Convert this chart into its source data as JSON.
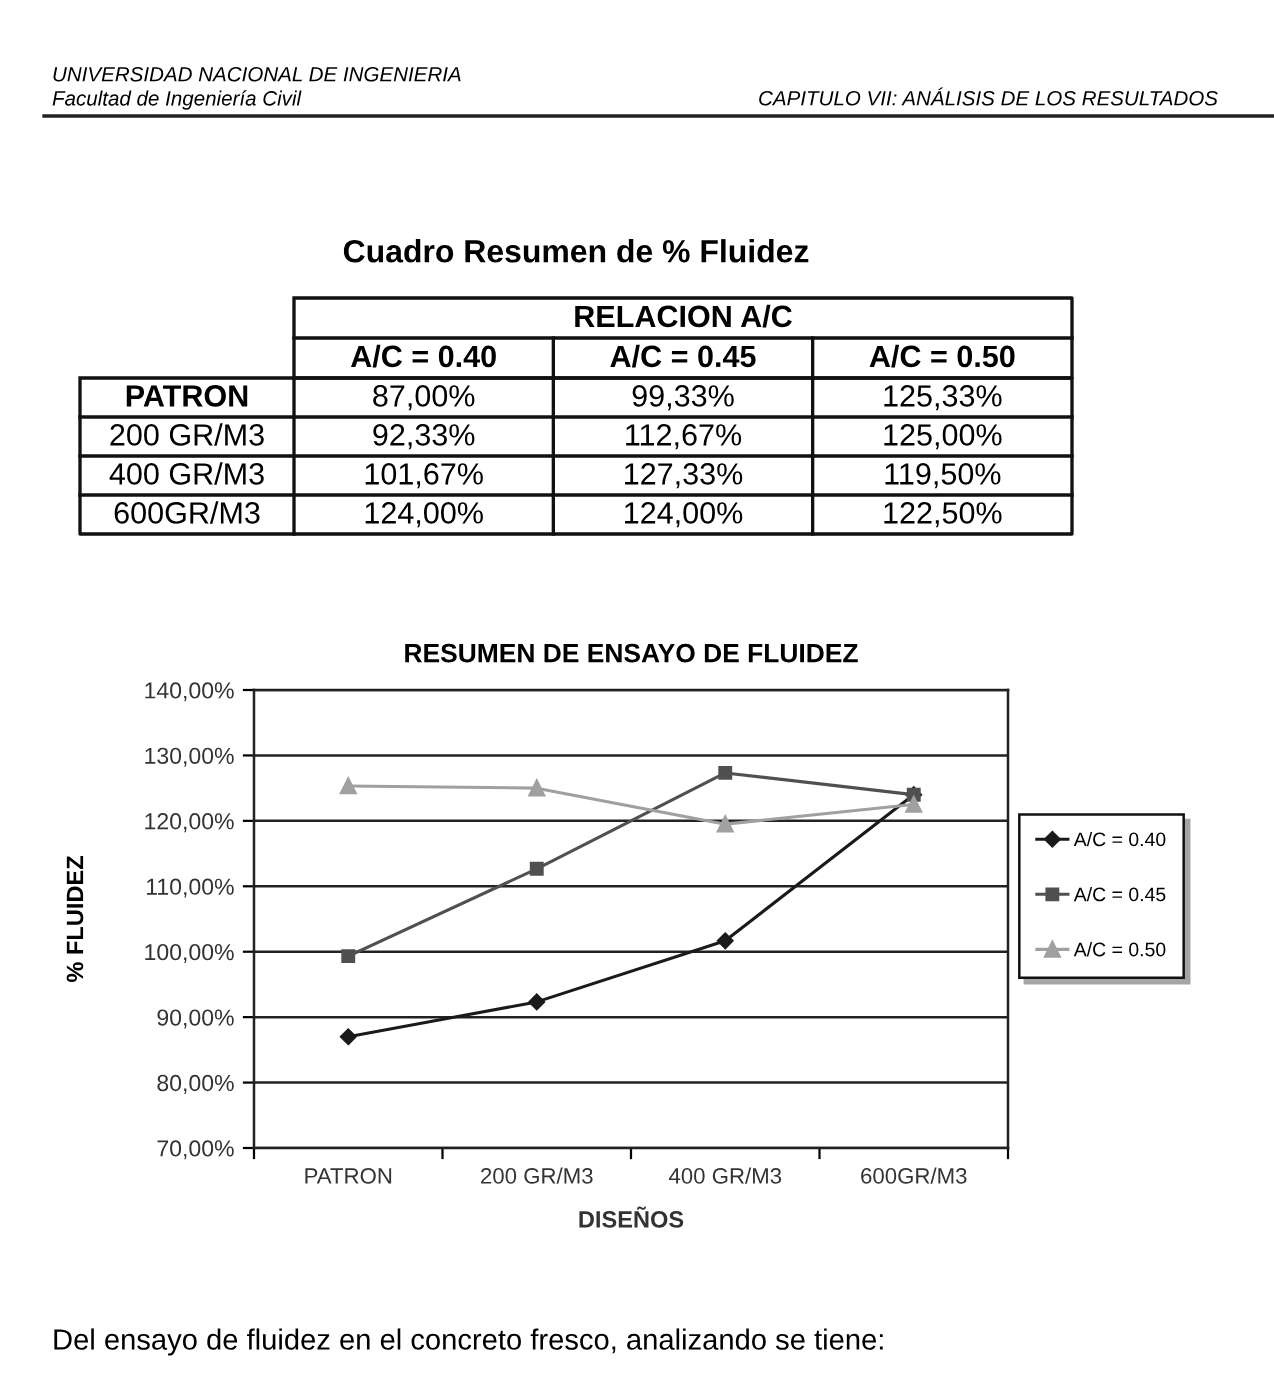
{
  "chart_data": [
    {
      "type": "other",
      "title": "Cuadro Resumen de % Fluidez",
      "annotations": [
        "UNIVERSIDAD NACIONAL DE INGENIERIA",
        "Facultad de Ingeniería Civil",
        "CAPITULO VII: ANÁLISIS DE LOS RESULTADOS",
        "RELACION A/C",
        "A/C = 0.40",
        "A/C = 0.45",
        "A/C = 0.50",
        "PATRON",
        "87,00%",
        "99,33%",
        "125,33%",
        "200 GR/M3",
        "92,33%",
        "112,67%",
        "125,00%",
        "400 GR/M3",
        "101,67%",
        "127,33%",
        "119,50%",
        "600GR/M3",
        "124,00%",
        "124,00%",
        "122,50%"
      ]
    },
    {
      "type": "line",
      "title": "RESUMEN DE ENSAYO DE FLUIDEZ",
      "xlabel": "DISEÑOS",
      "ylabel": "% FLUIDEZ",
      "categories": [
        "PATRON",
        "200 GR/M3",
        "400 GR/M3",
        "600GR/M3"
      ],
      "series": [
        {
          "name": "A/C = 0.40",
          "color": "#1a1a1a",
          "marker": "diamond",
          "values": [
            87.0,
            92.33,
            101.67,
            124.0
          ]
        },
        {
          "name": "A/C = 0.45",
          "color": "#505050",
          "marker": "square",
          "values": [
            99.33,
            112.67,
            127.33,
            124.0
          ]
        },
        {
          "name": "A/C = 0.50",
          "color": "#a0a0a0",
          "marker": "triangle",
          "values": [
            125.33,
            125.0,
            119.5,
            122.5
          ]
        }
      ],
      "ylim": [
        70,
        140
      ],
      "yticks": [
        {
          "value": 70,
          "label": "70,00%"
        },
        {
          "value": 80,
          "label": "80,00%"
        },
        {
          "value": 90,
          "label": "90,00%"
        },
        {
          "value": 100,
          "label": "100,00%"
        },
        {
          "value": 110,
          "label": "110,00%"
        },
        {
          "value": 120,
          "label": "120,00%"
        },
        {
          "value": 130,
          "label": "130,00%"
        },
        {
          "value": 140,
          "label": "140,00%"
        }
      ],
      "grid": "y",
      "legend": "right",
      "line_style": "solid",
      "annotations": [
        "Del ensayo de fluidez en el concreto fresco, analizando se tiene:"
      ]
    }
  ]
}
